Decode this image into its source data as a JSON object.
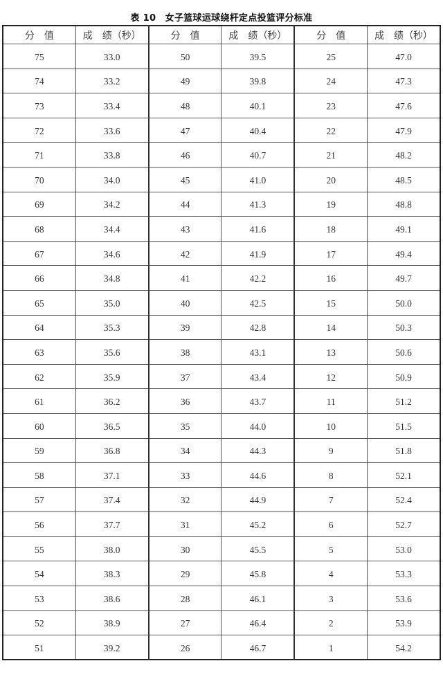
{
  "title": "表 10　女子篮球运球绕杆定点投篮评分标准",
  "headers": [
    "分　值",
    "成　绩（秒）",
    "分　值",
    "成　绩（秒）",
    "分　值",
    "成　绩（秒）"
  ],
  "rows": [
    [
      "75",
      "33.0",
      "50",
      "39.5",
      "25",
      "47.0"
    ],
    [
      "74",
      "33.2",
      "49",
      "39.8",
      "24",
      "47.3"
    ],
    [
      "73",
      "33.4",
      "48",
      "40.1",
      "23",
      "47.6"
    ],
    [
      "72",
      "33.6",
      "47",
      "40.4",
      "22",
      "47.9"
    ],
    [
      "71",
      "33.8",
      "46",
      "40.7",
      "21",
      "48.2"
    ],
    [
      "70",
      "34.0",
      "45",
      "41.0",
      "20",
      "48.5"
    ],
    [
      "69",
      "34.2",
      "44",
      "41.3",
      "19",
      "48.8"
    ],
    [
      "68",
      "34.4",
      "43",
      "41.6",
      "18",
      "49.1"
    ],
    [
      "67",
      "34.6",
      "42",
      "41.9",
      "17",
      "49.4"
    ],
    [
      "66",
      "34.8",
      "41",
      "42.2",
      "16",
      "49.7"
    ],
    [
      "65",
      "35.0",
      "40",
      "42.5",
      "15",
      "50.0"
    ],
    [
      "64",
      "35.3",
      "39",
      "42.8",
      "14",
      "50.3"
    ],
    [
      "63",
      "35.6",
      "38",
      "43.1",
      "13",
      "50.6"
    ],
    [
      "62",
      "35.9",
      "37",
      "43.4",
      "12",
      "50.9"
    ],
    [
      "61",
      "36.2",
      "36",
      "43.7",
      "11",
      "51.2"
    ],
    [
      "60",
      "36.5",
      "35",
      "44.0",
      "10",
      "51.5"
    ],
    [
      "59",
      "36.8",
      "34",
      "44.3",
      "9",
      "51.8"
    ],
    [
      "58",
      "37.1",
      "33",
      "44.6",
      "8",
      "52.1"
    ],
    [
      "57",
      "37.4",
      "32",
      "44.9",
      "7",
      "52.4"
    ],
    [
      "56",
      "37.7",
      "31",
      "45.2",
      "6",
      "52.7"
    ],
    [
      "55",
      "38.0",
      "30",
      "45.5",
      "5",
      "53.0"
    ],
    [
      "54",
      "38.3",
      "29",
      "45.8",
      "4",
      "53.3"
    ],
    [
      "53",
      "38.6",
      "28",
      "46.1",
      "3",
      "53.6"
    ],
    [
      "52",
      "38.9",
      "27",
      "46.4",
      "2",
      "53.9"
    ],
    [
      "51",
      "39.2",
      "26",
      "46.7",
      "1",
      "54.2"
    ]
  ]
}
